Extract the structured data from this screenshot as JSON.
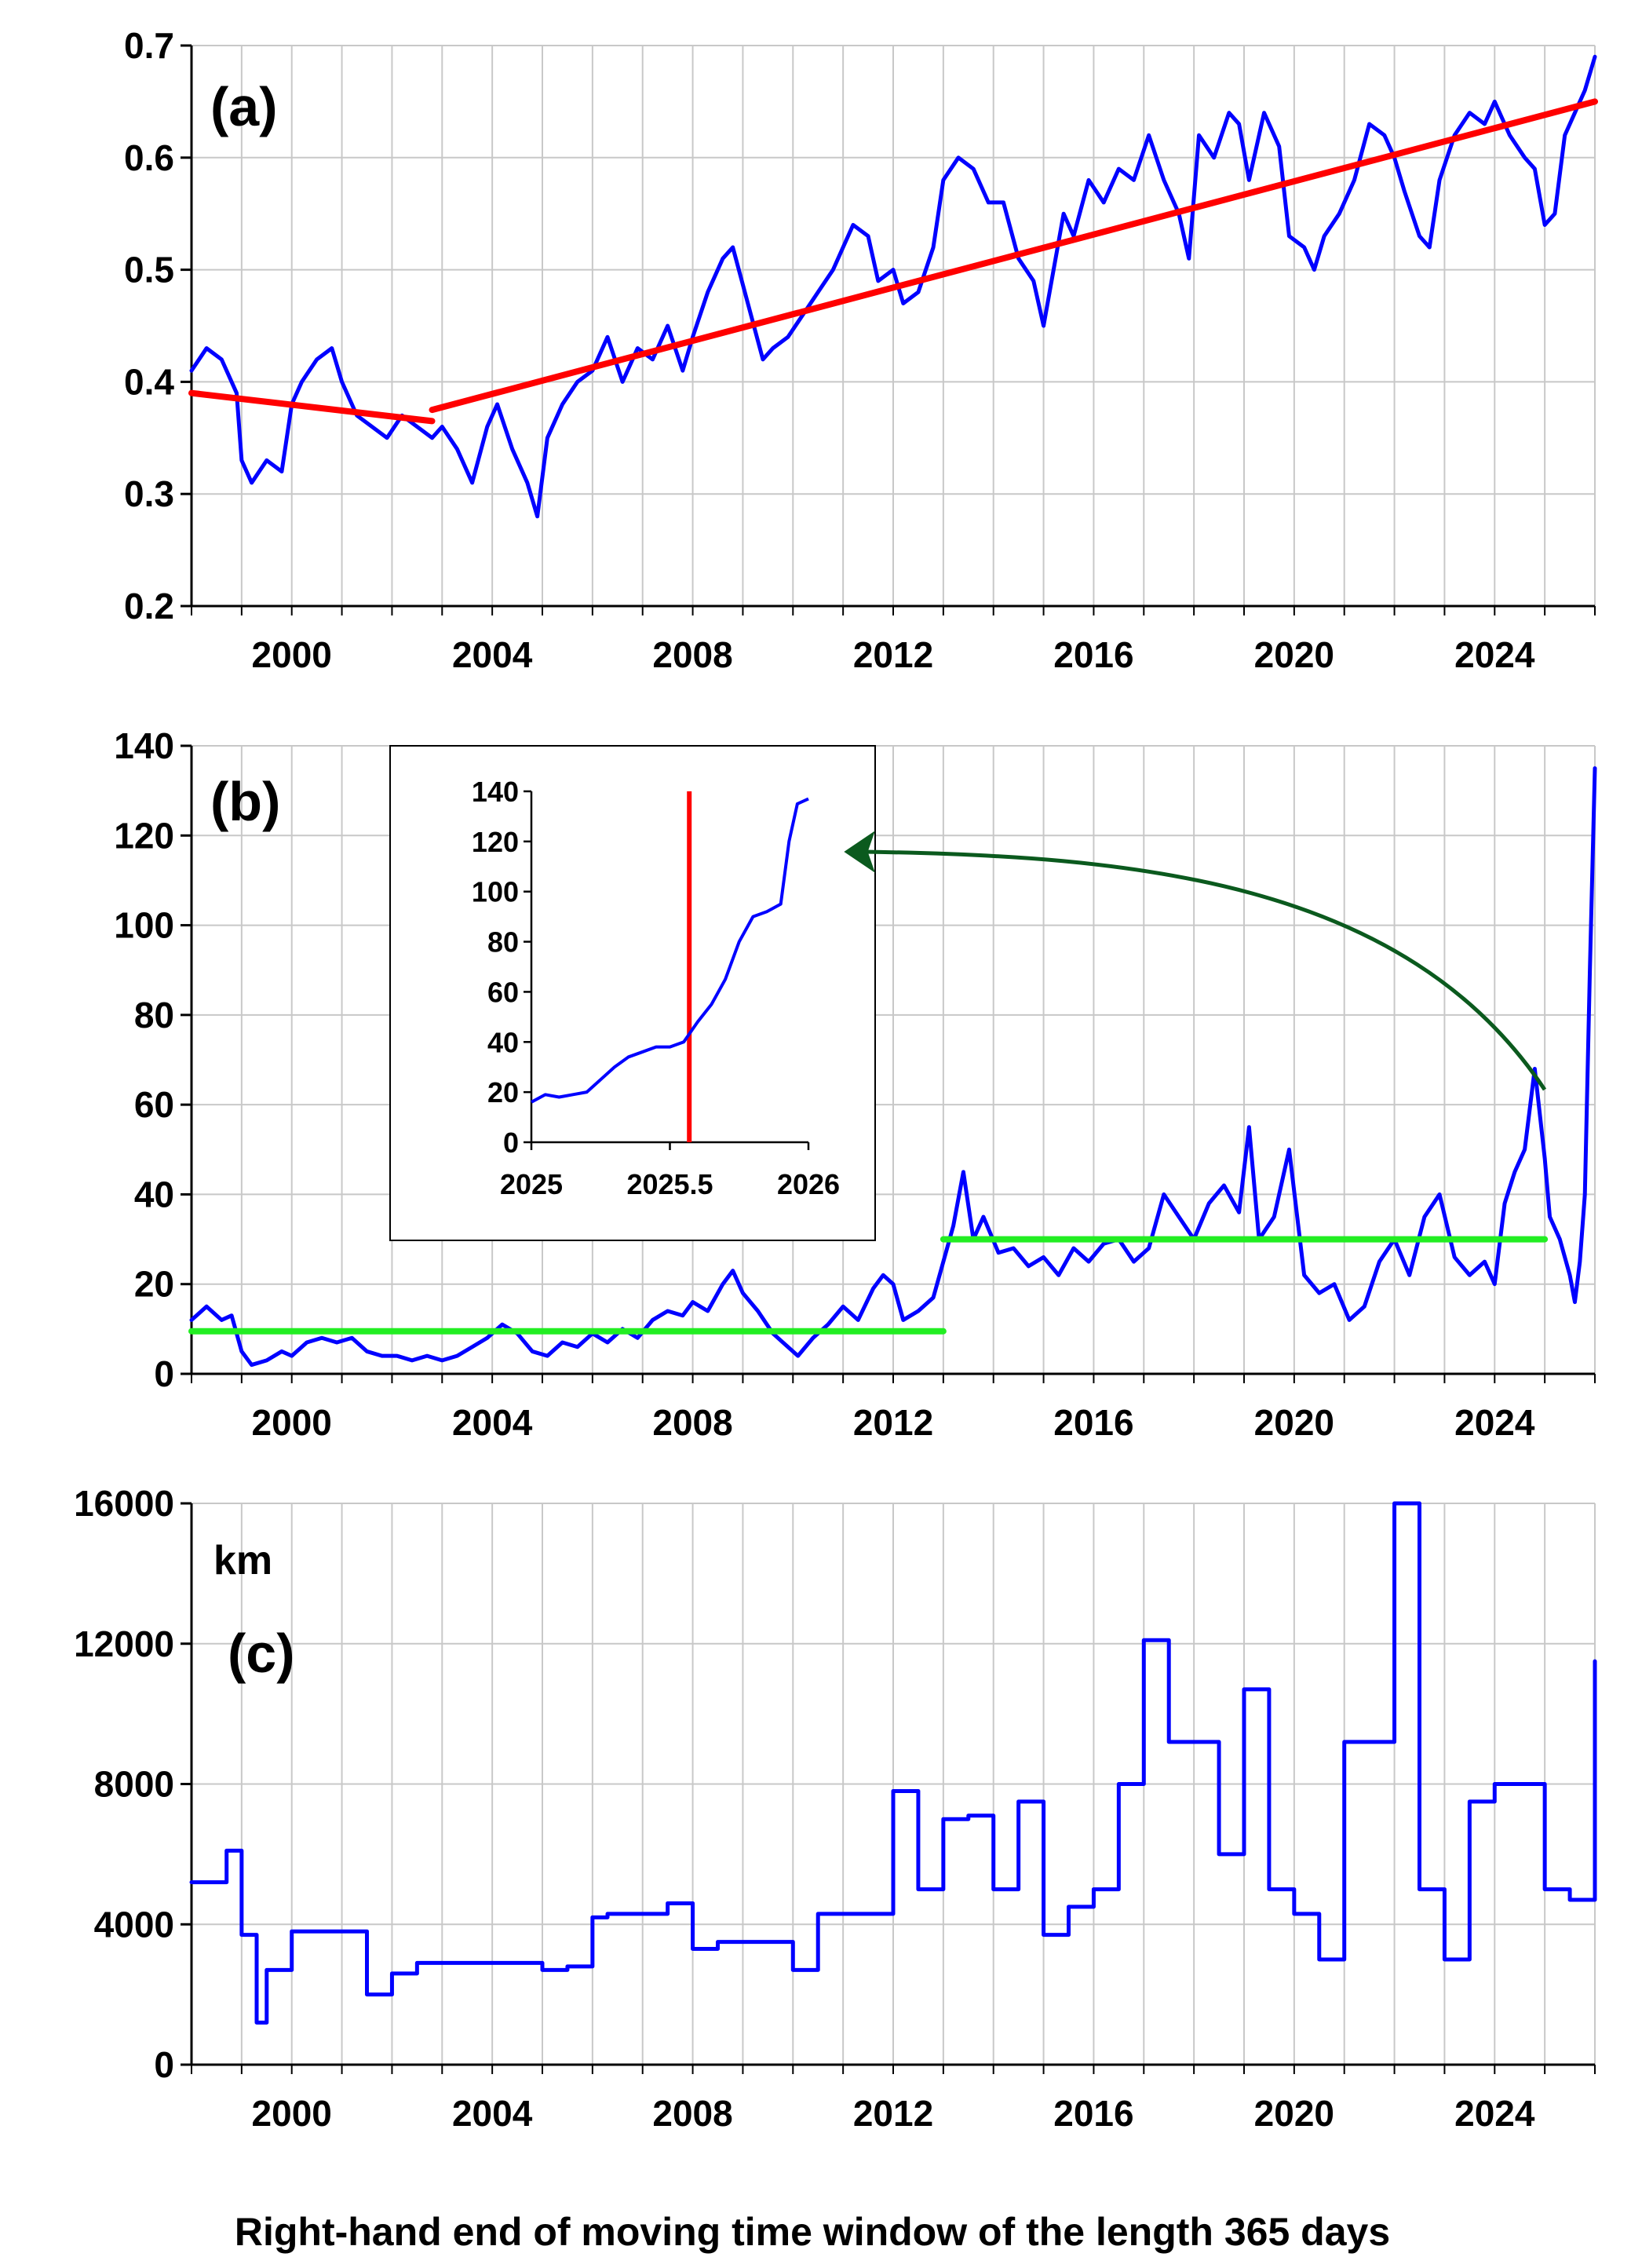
{
  "xlabel": "Right-hand end of moving time window of the length 365 days",
  "colors": {
    "series": "#0000ff",
    "trend": "#ff0000",
    "level": "#22ee22",
    "arrow": "#0b5a1e",
    "grid": "#c8c8c8",
    "axis": "#000000"
  },
  "chart_data": [
    {
      "type": "line",
      "label": "(a)",
      "xlim": [
        1998,
        2026
      ],
      "ylim": [
        0.2,
        0.7
      ],
      "xticks": [
        "2000",
        "2004",
        "2008",
        "2012",
        "2016",
        "2020",
        "2024"
      ],
      "yticks": [
        "0.2",
        "0.3",
        "0.4",
        "0.5",
        "0.6",
        "0.7"
      ],
      "grid": true,
      "series": [
        {
          "role": "data",
          "color": "#0000ff",
          "x": [
            1998.0,
            1998.3,
            1998.6,
            1998.9,
            1999.0,
            1999.2,
            1999.5,
            1999.8,
            2000.0,
            2000.2,
            2000.5,
            2000.8,
            2001.0,
            2001.3,
            2001.6,
            2001.9,
            2002.2,
            2002.5,
            2002.8,
            2003.0,
            2003.3,
            2003.6,
            2003.9,
            2004.1,
            2004.4,
            2004.7,
            2004.9,
            2005.1,
            2005.4,
            2005.7,
            2006.0,
            2006.3,
            2006.6,
            2006.9,
            2007.2,
            2007.5,
            2007.8,
            2008.0,
            2008.3,
            2008.6,
            2008.8,
            2009.1,
            2009.4,
            2009.6,
            2009.9,
            2010.2,
            2010.5,
            2010.8,
            2011.0,
            2011.2,
            2011.5,
            2011.7,
            2012.0,
            2012.2,
            2012.5,
            2012.8,
            2013.0,
            2013.3,
            2013.6,
            2013.9,
            2014.2,
            2014.5,
            2014.8,
            2015.0,
            2015.2,
            2015.4,
            2015.6,
            2015.9,
            2016.2,
            2016.5,
            2016.8,
            2017.1,
            2017.4,
            2017.7,
            2017.9,
            2018.1,
            2018.4,
            2018.7,
            2018.9,
            2019.1,
            2019.4,
            2019.7,
            2019.9,
            2020.2,
            2020.4,
            2020.6,
            2020.9,
            2021.2,
            2021.5,
            2021.8,
            2022.0,
            2022.2,
            2022.5,
            2022.7,
            2022.9,
            2023.2,
            2023.5,
            2023.8,
            2024.0,
            2024.3,
            2024.6,
            2024.8,
            2025.0,
            2025.2,
            2025.4,
            2025.6,
            2025.8,
            2026.0
          ],
          "y": [
            0.41,
            0.43,
            0.42,
            0.39,
            0.33,
            0.31,
            0.33,
            0.32,
            0.38,
            0.4,
            0.42,
            0.43,
            0.4,
            0.37,
            0.36,
            0.35,
            0.37,
            0.36,
            0.35,
            0.36,
            0.34,
            0.31,
            0.36,
            0.38,
            0.34,
            0.31,
            0.28,
            0.35,
            0.38,
            0.4,
            0.41,
            0.44,
            0.4,
            0.43,
            0.42,
            0.45,
            0.41,
            0.44,
            0.48,
            0.51,
            0.52,
            0.47,
            0.42,
            0.43,
            0.44,
            0.46,
            0.48,
            0.5,
            0.52,
            0.54,
            0.53,
            0.49,
            0.5,
            0.47,
            0.48,
            0.52,
            0.58,
            0.6,
            0.59,
            0.56,
            0.56,
            0.51,
            0.49,
            0.45,
            0.5,
            0.55,
            0.53,
            0.58,
            0.56,
            0.59,
            0.58,
            0.62,
            0.58,
            0.55,
            0.51,
            0.62,
            0.6,
            0.64,
            0.63,
            0.58,
            0.64,
            0.61,
            0.53,
            0.52,
            0.5,
            0.53,
            0.55,
            0.58,
            0.63,
            0.62,
            0.6,
            0.57,
            0.53,
            0.52,
            0.58,
            0.62,
            0.64,
            0.63,
            0.65,
            0.62,
            0.6,
            0.59,
            0.54,
            0.55,
            0.62,
            0.64,
            0.66,
            0.69
          ]
        },
        {
          "role": "trend-1",
          "color": "#ff0000",
          "x": [
            1998.0,
            2002.8
          ],
          "y": [
            0.39,
            0.365
          ]
        },
        {
          "role": "trend-2",
          "color": "#ff0000",
          "x": [
            2002.8,
            2026.0
          ],
          "y": [
            0.375,
            0.65
          ]
        }
      ]
    },
    {
      "type": "line",
      "label": "(b)",
      "xlim": [
        1998,
        2026
      ],
      "ylim": [
        0,
        140
      ],
      "xticks": [
        "2000",
        "2004",
        "2008",
        "2012",
        "2016",
        "2020",
        "2024"
      ],
      "yticks": [
        "0",
        "20",
        "40",
        "60",
        "80",
        "100",
        "120",
        "140"
      ],
      "grid": true,
      "series": [
        {
          "role": "data",
          "color": "#0000ff",
          "x": [
            1998.0,
            1998.3,
            1998.6,
            1998.8,
            1999.0,
            1999.2,
            1999.5,
            1999.8,
            2000.0,
            2000.3,
            2000.6,
            2000.9,
            2001.2,
            2001.5,
            2001.8,
            2002.1,
            2002.4,
            2002.7,
            2003.0,
            2003.3,
            2003.6,
            2003.9,
            2004.2,
            2004.5,
            2004.8,
            2005.1,
            2005.4,
            2005.7,
            2006.0,
            2006.3,
            2006.6,
            2006.9,
            2007.2,
            2007.5,
            2007.8,
            2008.0,
            2008.3,
            2008.6,
            2008.8,
            2009.0,
            2009.3,
            2009.6,
            2009.9,
            2010.1,
            2010.4,
            2010.7,
            2011.0,
            2011.3,
            2011.6,
            2011.8,
            2012.0,
            2012.2,
            2012.5,
            2012.8,
            2013.0,
            2013.2,
            2013.4,
            2013.6,
            2013.8,
            2014.1,
            2014.4,
            2014.7,
            2015.0,
            2015.3,
            2015.6,
            2015.9,
            2016.2,
            2016.5,
            2016.8,
            2017.1,
            2017.4,
            2017.7,
            2018.0,
            2018.3,
            2018.6,
            2018.9,
            2019.1,
            2019.3,
            2019.6,
            2019.9,
            2020.2,
            2020.5,
            2020.8,
            2021.1,
            2021.4,
            2021.7,
            2022.0,
            2022.3,
            2022.6,
            2022.9,
            2023.2,
            2023.5,
            2023.8,
            2024.0,
            2024.2,
            2024.4,
            2024.6,
            2024.8,
            2025.0,
            2025.1,
            2025.3,
            2025.5,
            2025.6,
            2025.7,
            2025.8,
            2025.9,
            2026.0
          ],
          "y": [
            12,
            15,
            12,
            13,
            5,
            2,
            3,
            5,
            4,
            7,
            8,
            7,
            8,
            5,
            4,
            4,
            3,
            4,
            3,
            4,
            6,
            8,
            11,
            9,
            5,
            4,
            7,
            6,
            9,
            7,
            10,
            8,
            12,
            14,
            13,
            16,
            14,
            20,
            23,
            18,
            14,
            9,
            6,
            4,
            8,
            11,
            15,
            12,
            19,
            22,
            20,
            12,
            14,
            17,
            25,
            33,
            45,
            30,
            35,
            27,
            28,
            24,
            26,
            22,
            28,
            25,
            29,
            30,
            25,
            28,
            40,
            35,
            30,
            38,
            42,
            36,
            55,
            30,
            35,
            50,
            22,
            18,
            20,
            12,
            15,
            25,
            30,
            22,
            35,
            40,
            26,
            22,
            25,
            20,
            38,
            45,
            50,
            68,
            48,
            35,
            30,
            22,
            16,
            25,
            40,
            90,
            135
          ]
        },
        {
          "role": "level-1",
          "color": "#22ee22",
          "x": [
            1998.0,
            2013.0
          ],
          "y": [
            9.5,
            9.5
          ]
        },
        {
          "role": "level-2",
          "color": "#22ee22",
          "x": [
            2013.0,
            2025.0
          ],
          "y": [
            30,
            30
          ]
        }
      ],
      "inset": {
        "type": "line",
        "xlim": [
          2025,
          2026
        ],
        "ylim": [
          0,
          140
        ],
        "xticks": [
          "2025",
          "2025.5",
          "2026"
        ],
        "yticks": [
          "0",
          "20",
          "40",
          "60",
          "80",
          "100",
          "120",
          "140"
        ],
        "marker_x": 2025.57,
        "marker_color": "#ff0000",
        "series": [
          {
            "color": "#0000ff",
            "x": [
              2025.0,
              2025.05,
              2025.1,
              2025.15,
              2025.2,
              2025.25,
              2025.3,
              2025.35,
              2025.4,
              2025.45,
              2025.5,
              2025.55,
              2025.6,
              2025.65,
              2025.7,
              2025.75,
              2025.8,
              2025.85,
              2025.9,
              2025.93,
              2025.96,
              2026.0
            ],
            "y": [
              16,
              19,
              18,
              19,
              20,
              25,
              30,
              34,
              36,
              38,
              38,
              40,
              48,
              55,
              65,
              80,
              90,
              92,
              95,
              120,
              135,
              137
            ]
          }
        ]
      }
    },
    {
      "type": "line",
      "label": "(c)",
      "ylabel": "km",
      "xlim": [
        1998,
        2026
      ],
      "ylim": [
        0,
        16000
      ],
      "xticks": [
        "2000",
        "2004",
        "2008",
        "2012",
        "2016",
        "2020",
        "2024"
      ],
      "yticks": [
        "0",
        "4000",
        "8000",
        "12000",
        "16000"
      ],
      "grid": true,
      "series": [
        {
          "role": "data",
          "color": "#0000ff",
          "step": true,
          "x": [
            1998.0,
            1998.7,
            1999.0,
            1999.3,
            1999.5,
            2000.0,
            2001.0,
            2001.5,
            2002.0,
            2002.5,
            2003.0,
            2004.0,
            2005.0,
            2005.5,
            2006.0,
            2006.3,
            2007.0,
            2007.5,
            2008.0,
            2008.5,
            2009.0,
            2010.0,
            2010.5,
            2011.0,
            2011.8,
            2012.0,
            2012.5,
            2013.0,
            2013.5,
            2014.0,
            2014.5,
            2015.0,
            2015.5,
            2016.0,
            2016.5,
            2017.0,
            2017.5,
            2018.0,
            2018.5,
            2019.0,
            2019.5,
            2020.0,
            2020.5,
            2021.0,
            2021.5,
            2022.0,
            2022.5,
            2023.0,
            2023.5,
            2024.0,
            2024.5,
            2025.0,
            2025.5,
            2026.0
          ],
          "y": [
            5200,
            6100,
            3700,
            1200,
            2700,
            3800,
            3800,
            2000,
            2600,
            2900,
            2900,
            2900,
            2700,
            2800,
            4200,
            4300,
            4300,
            4600,
            3300,
            3500,
            3500,
            2700,
            4300,
            4300,
            4300,
            7800,
            5000,
            7000,
            7100,
            5000,
            7500,
            3700,
            4500,
            5000,
            8000,
            12100,
            9200,
            9200,
            6000,
            10700,
            5000,
            4300,
            3000,
            9200,
            9200,
            16000,
            5000,
            3000,
            7500,
            8000,
            8000,
            5000,
            4700,
            11500
          ]
        }
      ]
    }
  ]
}
